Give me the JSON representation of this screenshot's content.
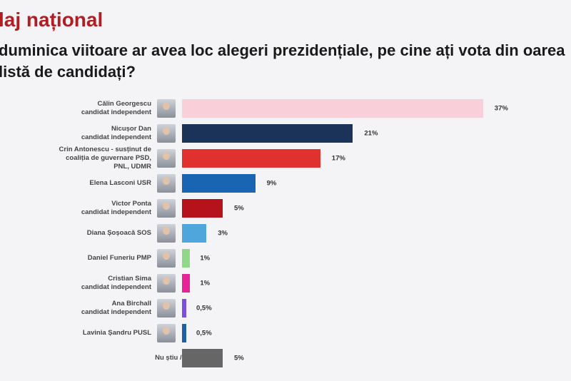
{
  "header": {
    "title": "laj național",
    "question": "duminica viitoare ar avea loc alegeri prezidențiale, pe cine ați vota din oarea listă de candidați?"
  },
  "chart_data": {
    "type": "bar",
    "orientation": "horizontal",
    "title": "laj național",
    "unit": "%",
    "categories": [
      {
        "name": "Călin Georgescu",
        "sub": "candidat independent",
        "label": "37%",
        "value": 37,
        "color": "#f9cfd9",
        "photo": true
      },
      {
        "name": "Nicușor Dan",
        "sub": "candidat independent",
        "label": "21%",
        "value": 21,
        "color": "#1b3358",
        "photo": true
      },
      {
        "name": "Crin Antonescu - susținut de",
        "sub": "coaliția de guvernare PSD,",
        "sub2": "PNL, UDMR",
        "label": "17%",
        "value": 17,
        "color": "#e0312f",
        "photo": true
      },
      {
        "name": "Elena Lasconi USR",
        "label": "9%",
        "value": 9,
        "color": "#1a64b4",
        "photo": true
      },
      {
        "name": "Victor Ponta",
        "sub": "candidat independent",
        "label": "5%",
        "value": 5,
        "color": "#b5121b",
        "photo": true
      },
      {
        "name": "Diana Șoșoacă SOS",
        "label": "3%",
        "value": 3,
        "color": "#4ea6dc",
        "photo": true
      },
      {
        "name": "Daniel Funeriu PMP",
        "label": "1%",
        "value": 1,
        "color": "#8fd88a",
        "photo": true
      },
      {
        "name": "Cristian Sima",
        "sub": "candidat independent",
        "label": "1%",
        "value": 1,
        "color": "#e8239a",
        "photo": true
      },
      {
        "name": "Ana Birchall",
        "sub": "candidat independent",
        "label": "0,5%",
        "value": 0.5,
        "color": "#7b4fe0",
        "photo": true
      },
      {
        "name": "Lavinia Șandru PUSL",
        "label": "0,5%",
        "value": 0.5,
        "color": "#1e5fa8",
        "photo": true
      },
      {
        "name": "Nu știu / Nu răspund",
        "label": "5%",
        "value": 5,
        "color": "#666666",
        "photo": false
      }
    ]
  }
}
